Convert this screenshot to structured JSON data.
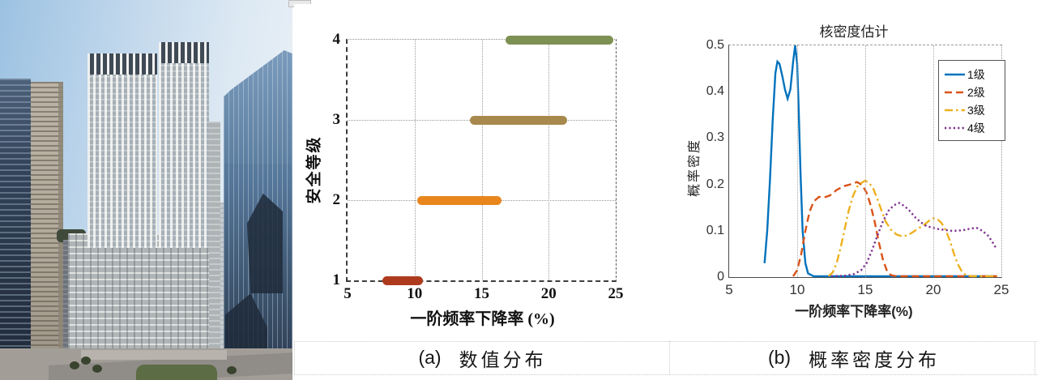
{
  "panel_captions": {
    "a": {
      "tag": "(a)",
      "text": "数值分布"
    },
    "b": {
      "tag": "(b)",
      "text": "概率密度分布"
    }
  },
  "chart_data": [
    {
      "id": "safety-level-value-distribution",
      "type": "bar",
      "orientation": "horizontal-range",
      "title": "",
      "xlabel": "一阶频率下降率 (%)",
      "ylabel": "安全等级",
      "xlim": [
        5,
        25
      ],
      "xticks": [
        5,
        10,
        15,
        20,
        25
      ],
      "yticks": [
        1,
        2,
        3,
        4
      ],
      "grid": "dotted",
      "series": [
        {
          "name": "1",
          "level": 1,
          "range": [
            7.6,
            10.6
          ],
          "color": "#AE3A1E"
        },
        {
          "name": "2",
          "level": 2,
          "range": [
            10.2,
            16.5
          ],
          "color": "#E8861D"
        },
        {
          "name": "3",
          "level": 3,
          "range": [
            14.1,
            21.4
          ],
          "color": "#A8894D"
        },
        {
          "name": "4",
          "level": 4,
          "range": [
            16.8,
            24.8
          ],
          "color": "#7D9153"
        }
      ]
    },
    {
      "id": "kernel-density-estimate",
      "type": "line",
      "title": "核密度估计",
      "xlabel": "一阶频率下降率(%)",
      "ylabel": "概率密度",
      "xlim": [
        5,
        25
      ],
      "ylim": [
        0,
        0.5
      ],
      "xticks": [
        5,
        10,
        15,
        20,
        25
      ],
      "yticks": [
        0,
        0.1,
        0.2,
        0.3,
        0.4,
        0.5
      ],
      "grid": "x-dotted",
      "legend_position": "upper right",
      "series": [
        {
          "name": "1级",
          "color": "#0072BD",
          "style": "solid",
          "points": [
            [
              7.6,
              0.03
            ],
            [
              7.8,
              0.1
            ],
            [
              8.0,
              0.21
            ],
            [
              8.2,
              0.34
            ],
            [
              8.4,
              0.44
            ],
            [
              8.55,
              0.465
            ],
            [
              8.7,
              0.46
            ],
            [
              8.9,
              0.435
            ],
            [
              9.1,
              0.405
            ],
            [
              9.3,
              0.385
            ],
            [
              9.5,
              0.405
            ],
            [
              9.7,
              0.465
            ],
            [
              9.85,
              0.5
            ],
            [
              10.0,
              0.46
            ],
            [
              10.1,
              0.37
            ],
            [
              10.25,
              0.22
            ],
            [
              10.4,
              0.1
            ],
            [
              10.6,
              0.03
            ],
            [
              10.8,
              0.008
            ],
            [
              11.2,
              0.002
            ],
            [
              24.7,
              0.002
            ]
          ]
        },
        {
          "name": "2级",
          "color": "#D95319",
          "style": "dashed",
          "points": [
            [
              9.7,
              0.002
            ],
            [
              10.0,
              0.015
            ],
            [
              10.3,
              0.05
            ],
            [
              10.6,
              0.1
            ],
            [
              10.9,
              0.14
            ],
            [
              11.2,
              0.163
            ],
            [
              11.6,
              0.173
            ],
            [
              12.0,
              0.172
            ],
            [
              12.4,
              0.176
            ],
            [
              12.9,
              0.188
            ],
            [
              13.4,
              0.196
            ],
            [
              13.9,
              0.2
            ],
            [
              14.4,
              0.205
            ],
            [
              14.8,
              0.198
            ],
            [
              15.1,
              0.182
            ],
            [
              15.4,
              0.155
            ],
            [
              15.7,
              0.118
            ],
            [
              16.0,
              0.075
            ],
            [
              16.3,
              0.038
            ],
            [
              16.6,
              0.013
            ],
            [
              16.9,
              0.004
            ],
            [
              17.3,
              0.002
            ],
            [
              24.7,
              0.002
            ]
          ]
        },
        {
          "name": "3级",
          "color": "#EDB120",
          "style": "dashdot",
          "points": [
            [
              12.3,
              0.002
            ],
            [
              12.6,
              0.01
            ],
            [
              12.9,
              0.03
            ],
            [
              13.2,
              0.065
            ],
            [
              13.5,
              0.105
            ],
            [
              13.8,
              0.145
            ],
            [
              14.1,
              0.175
            ],
            [
              14.4,
              0.195
            ],
            [
              14.7,
              0.203
            ],
            [
              15.0,
              0.208
            ],
            [
              15.3,
              0.203
            ],
            [
              15.6,
              0.19
            ],
            [
              15.9,
              0.168
            ],
            [
              16.2,
              0.143
            ],
            [
              16.5,
              0.12
            ],
            [
              16.9,
              0.102
            ],
            [
              17.3,
              0.092
            ],
            [
              17.7,
              0.088
            ],
            [
              18.1,
              0.09
            ],
            [
              18.5,
              0.097
            ],
            [
              18.9,
              0.105
            ],
            [
              19.3,
              0.112
            ],
            [
              19.7,
              0.122
            ],
            [
              20.0,
              0.127
            ],
            [
              20.3,
              0.125
            ],
            [
              20.6,
              0.117
            ],
            [
              20.9,
              0.102
            ],
            [
              21.2,
              0.08
            ],
            [
              21.5,
              0.052
            ],
            [
              21.8,
              0.028
            ],
            [
              22.1,
              0.012
            ],
            [
              22.4,
              0.004
            ],
            [
              22.8,
              0.002
            ],
            [
              24.7,
              0.002
            ]
          ]
        },
        {
          "name": "4级",
          "color": "#7E2F8E",
          "style": "dotted",
          "points": [
            [
              12.5,
              0.002
            ],
            [
              13.5,
              0.003
            ],
            [
              14.2,
              0.007
            ],
            [
              14.7,
              0.015
            ],
            [
              15.1,
              0.03
            ],
            [
              15.5,
              0.058
            ],
            [
              15.9,
              0.09
            ],
            [
              16.3,
              0.12
            ],
            [
              16.7,
              0.143
            ],
            [
              17.1,
              0.155
            ],
            [
              17.5,
              0.16
            ],
            [
              17.9,
              0.153
            ],
            [
              18.3,
              0.142
            ],
            [
              18.7,
              0.128
            ],
            [
              19.1,
              0.118
            ],
            [
              19.5,
              0.11
            ],
            [
              19.9,
              0.107
            ],
            [
              20.3,
              0.104
            ],
            [
              20.8,
              0.102
            ],
            [
              21.3,
              0.1
            ],
            [
              21.8,
              0.1
            ],
            [
              22.3,
              0.102
            ],
            [
              22.8,
              0.105
            ],
            [
              23.2,
              0.106
            ],
            [
              23.6,
              0.1
            ],
            [
              24.0,
              0.09
            ],
            [
              24.3,
              0.078
            ],
            [
              24.6,
              0.063
            ]
          ]
        }
      ]
    }
  ]
}
